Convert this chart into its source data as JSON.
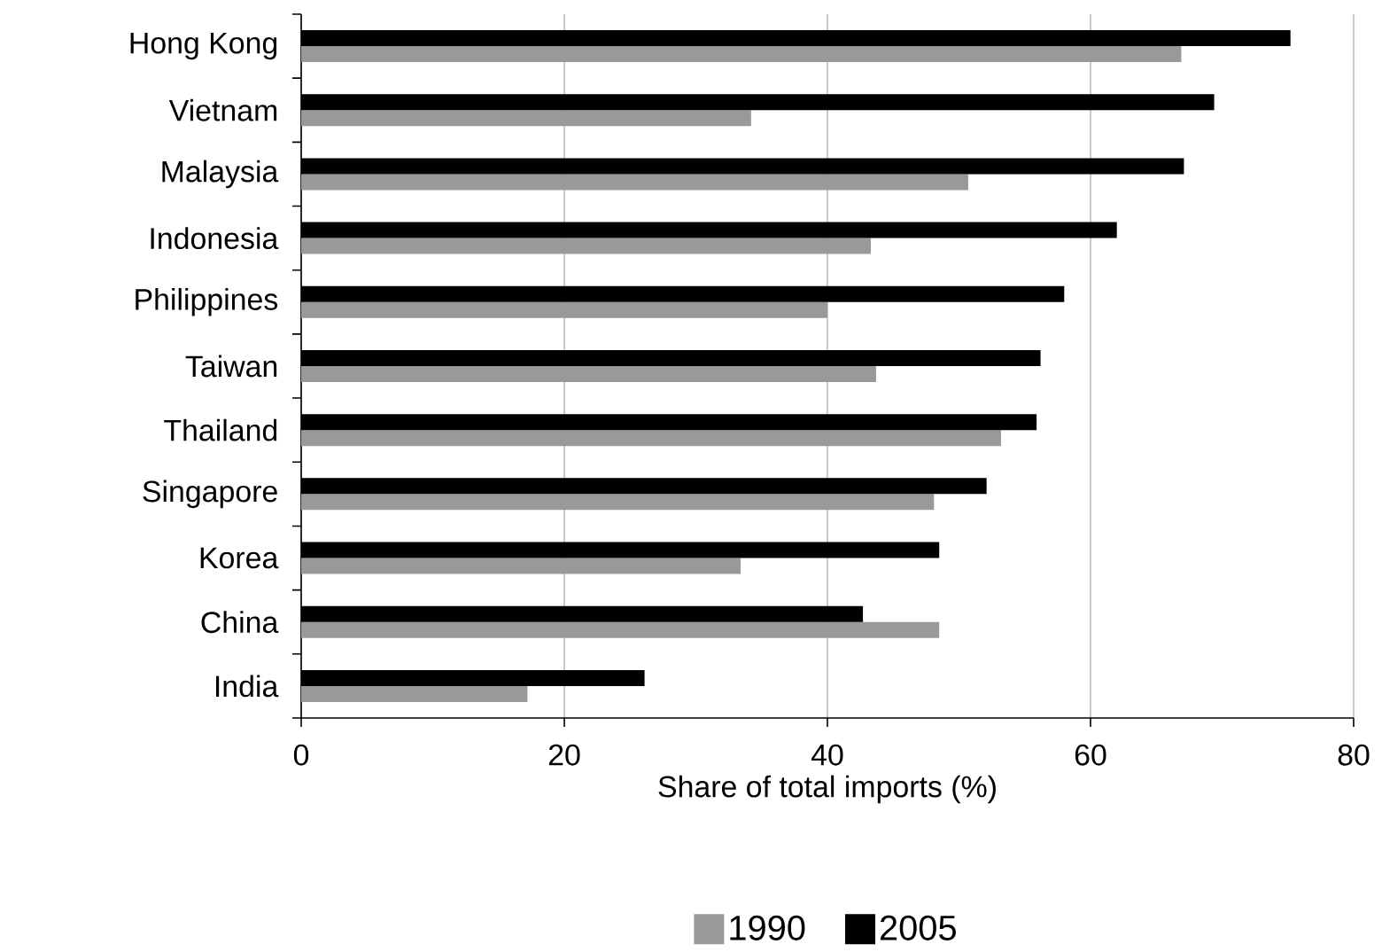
{
  "chart_data": {
    "type": "bar",
    "orientation": "horizontal",
    "xlabel": "Share of total imports (%)",
    "categories": [
      "Hong Kong",
      "Vietnam",
      "Malaysia",
      "Indonesia",
      "Philippines",
      "Taiwan",
      "Thailand",
      "Singapore",
      "Korea",
      "China",
      "India"
    ],
    "series": [
      {
        "name": "1990",
        "color": "#999999",
        "values": [
          66.9,
          34.2,
          50.7,
          43.3,
          40.0,
          43.7,
          53.2,
          48.1,
          33.4,
          48.5,
          17.2
        ]
      },
      {
        "name": "2005",
        "color": "#000000",
        "values": [
          75.2,
          69.4,
          67.1,
          62.0,
          58.0,
          56.2,
          55.9,
          52.1,
          48.5,
          42.7,
          26.1
        ]
      }
    ],
    "xlim": [
      0,
      80
    ],
    "xticks": [
      0,
      20,
      40,
      60,
      80
    ],
    "grid": "x",
    "legend": "bottom"
  }
}
